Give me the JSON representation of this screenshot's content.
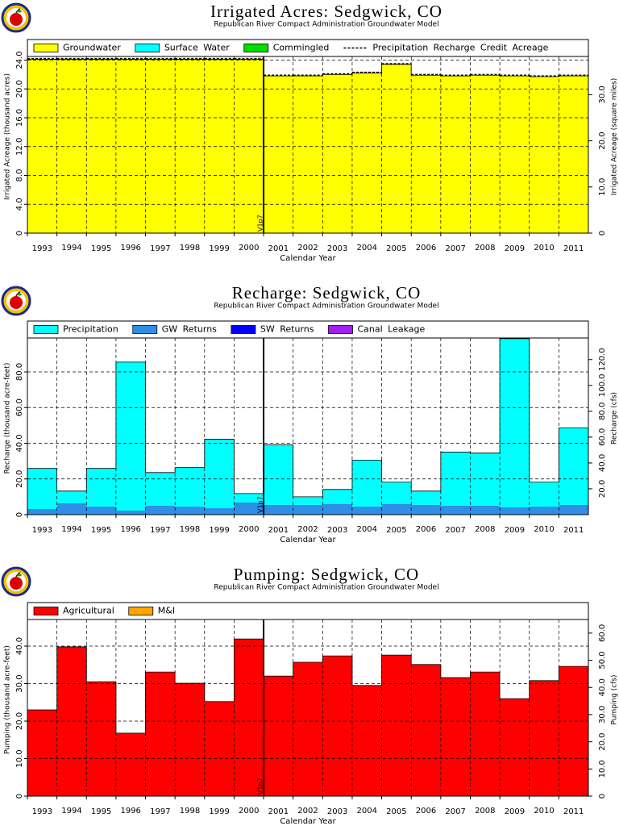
{
  "chart_data": [
    {
      "type": "bar",
      "title": "Irrigated Acres: Sedgwick, CO",
      "subtitle": "Republican River Compact Administration Groundwater Model",
      "xlabel": "Calendar Year",
      "ylabel": "Irrigated Acreage (thousand acres)",
      "y2label": "Irrigated Acreage (square miles)",
      "annotation": "V1p7",
      "categories": [
        "1993",
        "1994",
        "1995",
        "1996",
        "1997",
        "1998",
        "1999",
        "2000",
        "2001",
        "2002",
        "2003",
        "2004",
        "2005",
        "2006",
        "2007",
        "2008",
        "2009",
        "2010",
        "2011"
      ],
      "series": [
        {
          "name": "Groundwater",
          "color": "#ffff00",
          "values": [
            24.1,
            24.1,
            24.1,
            24.1,
            24.1,
            24.1,
            24.1,
            24.1,
            21.8,
            21.8,
            22.0,
            22.2,
            23.4,
            21.9,
            21.8,
            21.9,
            21.8,
            21.7,
            21.8
          ]
        },
        {
          "name": "Surface Water",
          "color": "#00ffff",
          "values": [
            0,
            0,
            0,
            0,
            0,
            0,
            0,
            0,
            0,
            0,
            0,
            0,
            0,
            0,
            0,
            0,
            0,
            0,
            0
          ]
        },
        {
          "name": "Commingled",
          "color": "#00dd00",
          "values": [
            0,
            0,
            0,
            0,
            0,
            0,
            0,
            0,
            0,
            0,
            0,
            0,
            0,
            0,
            0,
            0,
            0,
            0,
            0
          ]
        },
        {
          "name": "Precipitation Recharge Credit Acreage",
          "color": "#000000",
          "type": "line",
          "values": [
            24.2,
            24.2,
            24.2,
            24.2,
            24.2,
            24.2,
            24.2,
            24.2,
            21.9,
            21.9,
            22.1,
            22.3,
            23.5,
            22.0,
            21.9,
            22.0,
            21.9,
            21.8,
            21.9
          ]
        }
      ],
      "ylim": [
        0,
        24.5
      ],
      "yticks": [
        0,
        {
          "value": 4,
          "label": "4.0"
        },
        {
          "value": 8,
          "label": "8.0"
        },
        {
          "value": 12,
          "label": "12.0"
        },
        {
          "value": 16,
          "label": "16.0"
        },
        {
          "value": 20,
          "label": "20.0"
        },
        {
          "value": 24,
          "label": "24.0"
        }
      ],
      "y2lim": [
        0,
        38.28
      ],
      "y2ticks": [
        0,
        {
          "value": 10,
          "label": "10.0"
        },
        {
          "value": 20,
          "label": "20.0"
        },
        {
          "value": 30,
          "label": "30.0"
        }
      ],
      "grid": true
    },
    {
      "type": "bar",
      "title": "Recharge: Sedgwick, CO",
      "subtitle": "Republican River Compact Administration Groundwater Model",
      "xlabel": "Calendar Year",
      "ylabel": "Recharge (thousand acre-feet)",
      "y2label": "Recharge (cfs)",
      "annotation": "V1p7",
      "categories": [
        "1993",
        "1994",
        "1995",
        "1996",
        "1997",
        "1998",
        "1999",
        "2000",
        "2001",
        "2002",
        "2003",
        "2004",
        "2005",
        "2006",
        "2007",
        "2008",
        "2009",
        "2010",
        "2011"
      ],
      "series": [
        {
          "name": "Precipitation",
          "color": "#00ffff",
          "values": [
            22.7,
            6.8,
            21.4,
            83.2,
            18.6,
            21.9,
            38.7,
            5.0,
            33.6,
            4.5,
            8.2,
            26.0,
            12.3,
            7.7,
            30.0,
            29.5,
            94.5,
            13.7,
            43.1
          ]
        },
        {
          "name": "GW Returns",
          "color": "#2f8fe6",
          "values": [
            3.2,
            6.4,
            4.5,
            2.3,
            5.0,
            4.5,
            3.6,
            6.8,
            5.5,
            5.5,
            5.9,
            4.5,
            5.9,
            5.5,
            5.0,
            5.0,
            4.1,
            4.5,
            5.5
          ]
        },
        {
          "name": "SW Returns",
          "color": "#0000ff",
          "values": [
            0,
            0,
            0,
            0,
            0,
            0,
            0,
            0,
            0,
            0,
            0,
            0,
            0,
            0,
            0,
            0,
            0,
            0,
            0
          ]
        },
        {
          "name": "Canal Leakage",
          "color": "#a020f0",
          "values": [
            0,
            0,
            0,
            0,
            0,
            0,
            0,
            0,
            0,
            0,
            0,
            0,
            0,
            0,
            0,
            0,
            0,
            0,
            0
          ]
        }
      ],
      "ylim": [
        0,
        99
      ],
      "yticks": [
        0,
        {
          "value": 20,
          "label": "20.0"
        },
        {
          "value": 40,
          "label": "40.0"
        },
        {
          "value": 60,
          "label": "60.0"
        },
        {
          "value": 80,
          "label": "80.0"
        }
      ],
      "y2lim": [
        0,
        136.7
      ],
      "y2ticks": [
        {
          "value": 20,
          "label": "20.0"
        },
        {
          "value": 40,
          "label": "40.0"
        },
        {
          "value": 60,
          "label": "60.0"
        },
        {
          "value": 80,
          "label": "80.0"
        },
        {
          "value": 100,
          "label": "100.0"
        },
        {
          "value": 120,
          "label": "120.0"
        }
      ],
      "grid": true
    },
    {
      "type": "bar",
      "title": "Pumping: Sedgwick, CO",
      "subtitle": "Republican River Compact Administration Groundwater Model",
      "xlabel": "Calendar Year",
      "ylabel": "Pumping (thousand acre-feet)",
      "y2label": "Pumping (cfs)",
      "annotation": "V1p7",
      "categories": [
        "1993",
        "1994",
        "1995",
        "1996",
        "1997",
        "1998",
        "1999",
        "2000",
        "2001",
        "2002",
        "2003",
        "2004",
        "2005",
        "2006",
        "2007",
        "2008",
        "2009",
        "2010",
        "2011"
      ],
      "series": [
        {
          "name": "Agricultural",
          "color": "#ff0000",
          "values": [
            23.0,
            39.8,
            30.5,
            16.8,
            33.1,
            30.1,
            25.2,
            41.9,
            32.0,
            35.7,
            37.4,
            29.5,
            37.6,
            35.1,
            31.6,
            33.1,
            26.0,
            30.8,
            34.6
          ]
        },
        {
          "name": "M&I",
          "color": "#ffa500",
          "values": [
            0,
            0,
            0,
            0,
            0,
            0,
            0,
            0,
            0,
            0,
            0,
            0,
            0,
            0,
            0,
            0,
            0,
            0,
            0
          ]
        }
      ],
      "ylim": [
        0,
        47.1
      ],
      "yticks": [
        0,
        {
          "value": 10,
          "label": "10.0"
        },
        {
          "value": 20,
          "label": "20.0"
        },
        {
          "value": 30,
          "label": "30.0"
        },
        {
          "value": 40,
          "label": "40.0"
        }
      ],
      "y2lim": [
        0,
        65.0
      ],
      "y2ticks": [
        0,
        {
          "value": 10,
          "label": "10.0"
        },
        {
          "value": 20,
          "label": "20.0"
        },
        {
          "value": 30,
          "label": "30.0"
        },
        {
          "value": 40,
          "label": "40.0"
        },
        {
          "value": 50,
          "label": "50.0"
        },
        {
          "value": 60,
          "label": "60.0"
        }
      ],
      "grid": true
    }
  ]
}
